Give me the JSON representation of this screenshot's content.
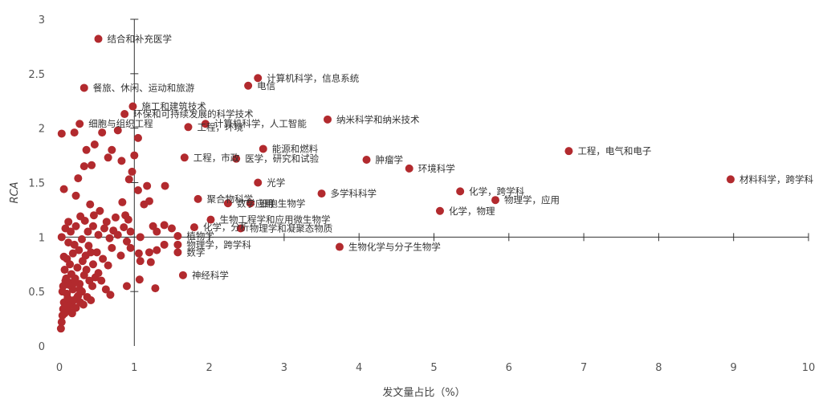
{
  "chart_data": {
    "type": "scatter",
    "xlabel": "发文量占比（%）",
    "ylabel": "RCA",
    "xlim": [
      0,
      10
    ],
    "ylim": [
      0,
      3
    ],
    "x_ticks": [
      "0",
      "1",
      "2",
      "3",
      "4",
      "5",
      "6",
      "7",
      "8",
      "9",
      "10"
    ],
    "y_ticks": [
      "0",
      "0.5",
      "1",
      "1.5",
      "2",
      "2.5",
      "3"
    ],
    "reference_lines": {
      "x": 1,
      "y": 1
    },
    "marker_color": "#b22a2e",
    "labeled_points": [
      {
        "label": "结合和补充医学",
        "x": 0.52,
        "y": 2.82
      },
      {
        "label": "餐旅、休闲、运动和旅游",
        "x": 0.33,
        "y": 2.37
      },
      {
        "label": "计算机科学，信息系统",
        "x": 2.65,
        "y": 2.46
      },
      {
        "label": "电信",
        "x": 2.52,
        "y": 2.39
      },
      {
        "label": "施工和建筑技术",
        "x": 0.98,
        "y": 2.2
      },
      {
        "label": "环保和可持续发展的科学技术",
        "x": 0.87,
        "y": 2.13
      },
      {
        "label": "细胞与组织工程",
        "x": 0.27,
        "y": 2.04
      },
      {
        "label": "计算机科学，人工智能",
        "x": 1.95,
        "y": 2.04
      },
      {
        "label": "工程，环境",
        "x": 1.72,
        "y": 2.01
      },
      {
        "label": "纳米科学和纳米技术",
        "x": 3.58,
        "y": 2.08
      },
      {
        "label": "能源和燃料",
        "x": 2.72,
        "y": 1.81
      },
      {
        "label": "工程，市政",
        "x": 1.67,
        "y": 1.73
      },
      {
        "label": "医学，研究和试验",
        "x": 2.36,
        "y": 1.72
      },
      {
        "label": "肿瘤学",
        "x": 4.1,
        "y": 1.71
      },
      {
        "label": "环境科学",
        "x": 4.67,
        "y": 1.63
      },
      {
        "label": "工程，电气和电子",
        "x": 6.8,
        "y": 1.79
      },
      {
        "label": "材料科学，跨学科",
        "x": 8.96,
        "y": 1.53
      },
      {
        "label": "光学",
        "x": 2.65,
        "y": 1.5
      },
      {
        "label": "化学，跨学科",
        "x": 5.35,
        "y": 1.42
      },
      {
        "label": "多学科科学",
        "x": 3.5,
        "y": 1.4
      },
      {
        "label": "物理学，应用",
        "x": 5.82,
        "y": 1.34
      },
      {
        "label": "聚合物科学",
        "x": 1.85,
        "y": 1.35
      },
      {
        "label": "数学应用",
        "x": 2.25,
        "y": 1.31
      },
      {
        "label": "细胞生物学",
        "x": 2.55,
        "y": 1.31
      },
      {
        "label": "化学，物理",
        "x": 5.08,
        "y": 1.24
      },
      {
        "label": "生物工程学和应用微生物学",
        "x": 2.02,
        "y": 1.16
      },
      {
        "label": "化学，分析",
        "x": 1.8,
        "y": 1.09
      },
      {
        "label": "物理学和凝聚态物质",
        "x": 2.42,
        "y": 1.08
      },
      {
        "label": "植物学",
        "x": 1.58,
        "y": 1.01
      },
      {
        "label": "物理学，跨学科",
        "x": 1.58,
        "y": 0.93
      },
      {
        "label": "生物化学与分子生物学",
        "x": 3.74,
        "y": 0.91
      },
      {
        "label": "数学",
        "x": 1.58,
        "y": 0.86
      },
      {
        "label": "神经科学",
        "x": 1.65,
        "y": 0.65
      }
    ],
    "cluster_points": [
      [
        0.03,
        1.95
      ],
      [
        0.06,
        1.44
      ],
      [
        0.12,
        1.14
      ],
      [
        0.2,
        1.96
      ],
      [
        0.33,
        1.65
      ],
      [
        0.36,
        1.8
      ],
      [
        0.43,
        1.66
      ],
      [
        0.47,
        1.85
      ],
      [
        0.25,
        1.54
      ],
      [
        0.22,
        1.38
      ],
      [
        0.41,
        1.3
      ],
      [
        0.57,
        1.96
      ],
      [
        0.65,
        1.73
      ],
      [
        0.7,
        1.8
      ],
      [
        0.78,
        1.98
      ],
      [
        0.83,
        1.7
      ],
      [
        0.93,
        1.53
      ],
      [
        0.97,
        1.6
      ],
      [
        1.05,
        1.91
      ],
      [
        1.0,
        1.75
      ],
      [
        1.13,
        1.3
      ],
      [
        1.05,
        1.43
      ],
      [
        1.2,
        1.33
      ],
      [
        1.17,
        1.47
      ],
      [
        1.41,
        1.47
      ],
      [
        0.84,
        1.32
      ],
      [
        0.08,
        1.08
      ],
      [
        0.15,
        1.05
      ],
      [
        0.22,
        1.1
      ],
      [
        0.3,
        0.98
      ],
      [
        0.38,
        1.05
      ],
      [
        0.45,
        1.1
      ],
      [
        0.52,
        1.02
      ],
      [
        0.6,
        1.08
      ],
      [
        0.67,
        0.99
      ],
      [
        0.72,
        1.06
      ],
      [
        0.78,
        1.02
      ],
      [
        0.86,
        1.09
      ],
      [
        0.9,
        0.96
      ],
      [
        0.95,
        1.05
      ],
      [
        1.08,
        1.0
      ],
      [
        1.25,
        1.1
      ],
      [
        1.3,
        1.05
      ],
      [
        1.4,
        1.11
      ],
      [
        1.5,
        1.08
      ],
      [
        0.54,
        1.24
      ],
      [
        0.63,
        1.14
      ],
      [
        0.75,
        1.18
      ],
      [
        0.88,
        1.2
      ],
      [
        0.92,
        1.16
      ],
      [
        0.46,
        1.2
      ],
      [
        0.34,
        1.15
      ],
      [
        0.28,
        1.19
      ],
      [
        0.95,
        0.9
      ],
      [
        1.06,
        0.85
      ],
      [
        1.2,
        0.86
      ],
      [
        1.3,
        0.88
      ],
      [
        1.4,
        0.93
      ],
      [
        1.08,
        0.78
      ],
      [
        1.22,
        0.77
      ],
      [
        0.82,
        0.83
      ],
      [
        0.7,
        0.9
      ],
      [
        0.58,
        0.8
      ],
      [
        0.65,
        0.74
      ],
      [
        0.5,
        0.86
      ],
      [
        0.45,
        0.75
      ],
      [
        0.9,
        0.55
      ],
      [
        1.07,
        0.61
      ],
      [
        1.28,
        0.53
      ],
      [
        0.03,
        1.0
      ],
      [
        0.05,
        0.55
      ],
      [
        0.08,
        0.6
      ],
      [
        0.1,
        0.48
      ],
      [
        0.12,
        0.4
      ],
      [
        0.15,
        0.58
      ],
      [
        0.18,
        0.52
      ],
      [
        0.21,
        0.62
      ],
      [
        0.24,
        0.45
      ],
      [
        0.27,
        0.57
      ],
      [
        0.3,
        0.5
      ],
      [
        0.33,
        0.65
      ],
      [
        0.36,
        0.7
      ],
      [
        0.4,
        0.6
      ],
      [
        0.44,
        0.55
      ],
      [
        0.48,
        0.63
      ],
      [
        0.52,
        0.67
      ],
      [
        0.56,
        0.6
      ],
      [
        0.62,
        0.52
      ],
      [
        0.68,
        0.47
      ],
      [
        0.02,
        0.16
      ],
      [
        0.03,
        0.22
      ],
      [
        0.04,
        0.28
      ],
      [
        0.05,
        0.34
      ],
      [
        0.06,
        0.4
      ],
      [
        0.07,
        0.3
      ],
      [
        0.09,
        0.36
      ],
      [
        0.11,
        0.44
      ],
      [
        0.13,
        0.32
      ],
      [
        0.16,
        0.38
      ],
      [
        0.19,
        0.42
      ],
      [
        0.22,
        0.35
      ],
      [
        0.25,
        0.46
      ],
      [
        0.28,
        0.4
      ],
      [
        0.32,
        0.38
      ],
      [
        0.37,
        0.45
      ],
      [
        0.42,
        0.42
      ],
      [
        0.17,
        0.3
      ],
      [
        0.04,
        0.5
      ],
      [
        0.07,
        0.7
      ],
      [
        0.1,
        0.8
      ],
      [
        0.14,
        0.75
      ],
      [
        0.18,
        0.85
      ],
      [
        0.2,
        0.93
      ],
      [
        0.24,
        0.72
      ],
      [
        0.26,
        0.88
      ],
      [
        0.31,
        0.78
      ],
      [
        0.35,
        0.83
      ],
      [
        0.39,
        0.92
      ],
      [
        0.42,
        0.86
      ],
      [
        0.12,
        0.95
      ],
      [
        0.16,
        0.66
      ],
      [
        0.09,
        0.62
      ],
      [
        0.2,
        0.58
      ],
      [
        0.27,
        0.52
      ],
      [
        0.06,
        0.82
      ],
      [
        0.13,
        0.56
      ]
    ]
  }
}
